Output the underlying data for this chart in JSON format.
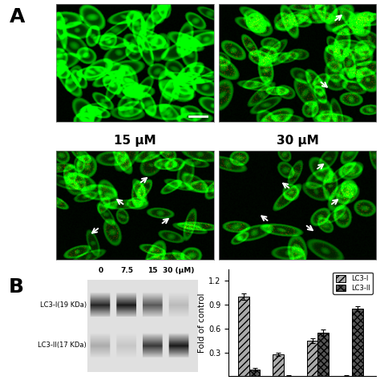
{
  "panel_A_label": "A",
  "panel_B_label": "B",
  "top_row_labels": [
    "15 μM",
    "30 μM"
  ],
  "western_blot_labels": [
    "LC3-I(19 KDa)",
    "LC3-II(17 KDa)"
  ],
  "x_labels": [
    "0",
    "7.5",
    "15",
    "30 (μM)"
  ],
  "y_label": "Fold of control",
  "y_ticks": [
    0.3,
    0.6,
    0.9,
    1.2
  ],
  "legend_labels": [
    "LC3-I",
    "LC3-II"
  ],
  "lc3_I_values": [
    1.0,
    0.28,
    0.45,
    0.0
  ],
  "lc3_II_values": [
    0.08,
    0.0,
    0.55,
    0.85
  ],
  "lc3_I_errors": [
    0.04,
    0.02,
    0.03,
    0.01
  ],
  "lc3_II_errors": [
    0.02,
    0.01,
    0.04,
    0.03
  ],
  "bg_color": "#ffffff",
  "fig_width": 4.74,
  "fig_height": 4.74,
  "dpi": 100
}
